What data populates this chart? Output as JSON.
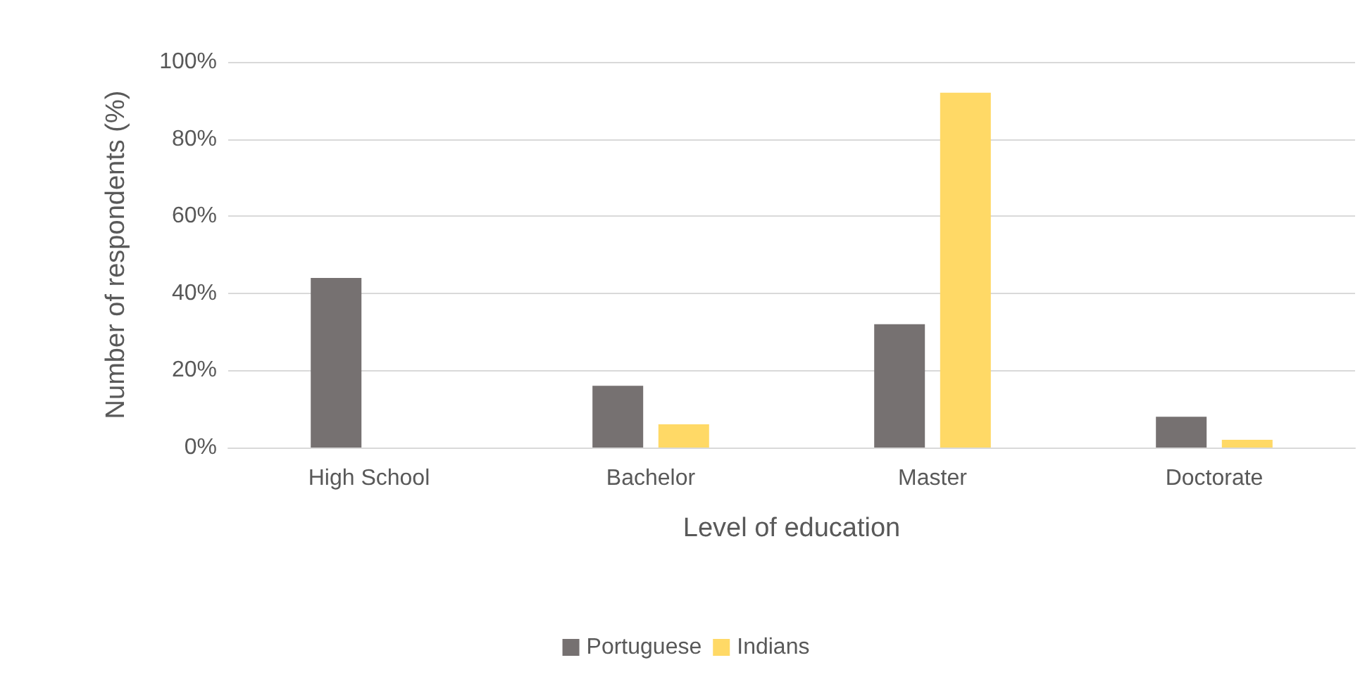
{
  "chart_data": {
    "type": "bar",
    "xlabel": "Level of education",
    "ylabel": "Number of respondents (%)",
    "categories": [
      "High School",
      "Bachelor",
      "Master",
      "Doctorate"
    ],
    "series": [
      {
        "name": "Portuguese",
        "color": "#767171",
        "values": [
          44,
          16,
          32,
          8
        ]
      },
      {
        "name": "Indians",
        "color": "#ffd966",
        "values": [
          0,
          6,
          92,
          2
        ]
      }
    ],
    "ylim": [
      0,
      100
    ],
    "yticks": [
      {
        "value": 0,
        "label": "0%"
      },
      {
        "value": 20,
        "label": "20%"
      },
      {
        "value": 40,
        "label": "40%"
      },
      {
        "value": 60,
        "label": "60%"
      },
      {
        "value": 80,
        "label": "80%"
      },
      {
        "value": 100,
        "label": "100%"
      }
    ],
    "grid": "y",
    "legend": "bottom"
  }
}
